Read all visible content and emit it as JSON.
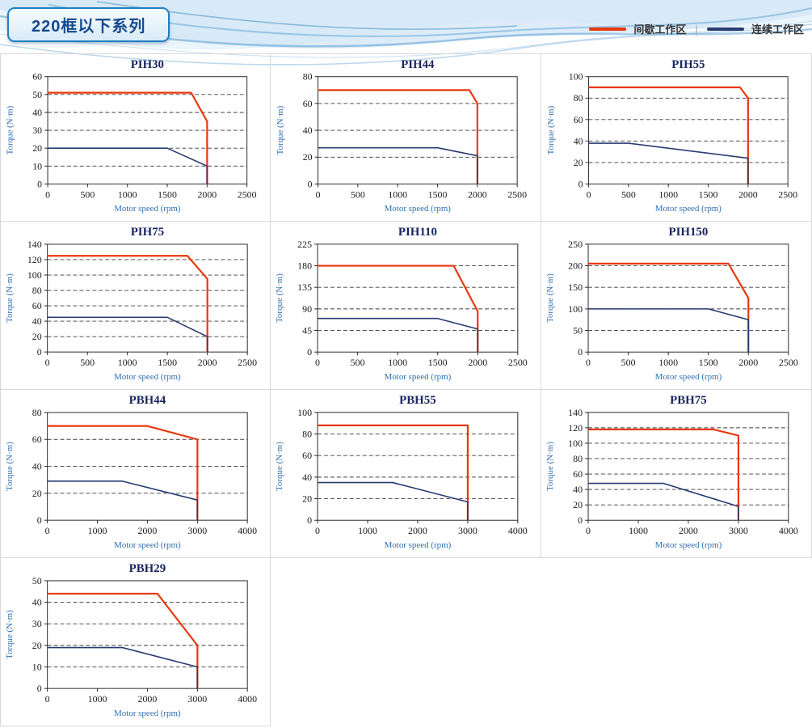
{
  "header": {
    "badge": "220框以下系列",
    "legend": {
      "items": [
        {
          "label": "间歇工作区",
          "color": "#e8380d"
        },
        {
          "label": "连续工作区",
          "color": "#283c72"
        }
      ],
      "divider": "|"
    }
  },
  "chart_data": [
    {
      "type": "line",
      "title": "PIH30",
      "xlabel": "Motor speed (rpm)",
      "ylabel": "Torque (N·m)",
      "xlim": [
        0,
        2500
      ],
      "ylim": [
        0,
        60
      ],
      "xticks": [
        0,
        500,
        1000,
        1500,
        2000,
        2500
      ],
      "yticks": [
        0,
        10,
        20,
        30,
        40,
        50,
        60
      ],
      "grid": "dashed-horizontal",
      "series": [
        {
          "name": "间歇工作区",
          "color": "#e8380d",
          "points": [
            [
              0,
              51
            ],
            [
              1800,
              51
            ],
            [
              2000,
              35
            ],
            [
              2000,
              0
            ]
          ]
        },
        {
          "name": "连续工作区",
          "color": "#283c72",
          "points": [
            [
              0,
              20
            ],
            [
              1500,
              20
            ],
            [
              2000,
              10
            ],
            [
              2000,
              0
            ]
          ]
        }
      ]
    },
    {
      "type": "line",
      "title": "PIH44",
      "xlabel": "Motor speed (rpm)",
      "ylabel": "Torque (N·m)",
      "xlim": [
        0,
        2500
      ],
      "ylim": [
        0,
        80
      ],
      "xticks": [
        0,
        500,
        1000,
        1500,
        2000,
        2500
      ],
      "yticks": [
        0,
        20,
        40,
        60,
        80
      ],
      "grid": "dashed-horizontal",
      "series": [
        {
          "name": "间歇工作区",
          "color": "#e8380d",
          "points": [
            [
              0,
              70
            ],
            [
              1900,
              70
            ],
            [
              2000,
              60
            ],
            [
              2000,
              0
            ]
          ]
        },
        {
          "name": "连续工作区",
          "color": "#283c72",
          "points": [
            [
              0,
              27
            ],
            [
              1500,
              27
            ],
            [
              2000,
              21
            ],
            [
              2000,
              0
            ]
          ]
        }
      ]
    },
    {
      "type": "line",
      "title": "PIH55",
      "xlabel": "Motor speed (rpm)",
      "ylabel": "Torque (N·m)",
      "xlim": [
        0,
        2500
      ],
      "ylim": [
        0,
        100
      ],
      "xticks": [
        0,
        500,
        1000,
        1500,
        2000,
        2500
      ],
      "yticks": [
        0,
        20,
        40,
        60,
        80,
        100
      ],
      "grid": "dashed-horizontal",
      "series": [
        {
          "name": "间歇工作区",
          "color": "#e8380d",
          "points": [
            [
              0,
              90
            ],
            [
              1900,
              90
            ],
            [
              2000,
              80
            ],
            [
              2000,
              0
            ]
          ]
        },
        {
          "name": "连续工作区",
          "color": "#283c72",
          "points": [
            [
              0,
              38
            ],
            [
              500,
              38
            ],
            [
              2000,
              24
            ],
            [
              2000,
              0
            ]
          ]
        }
      ]
    },
    {
      "type": "line",
      "title": "PIH75",
      "xlabel": "Motor speed (rpm)",
      "ylabel": "Torque (N·m)",
      "xlim": [
        0,
        2500
      ],
      "ylim": [
        0,
        140
      ],
      "xticks": [
        0,
        500,
        1000,
        1500,
        2000,
        2500
      ],
      "yticks": [
        0,
        20,
        40,
        60,
        80,
        100,
        120,
        140
      ],
      "grid": "dashed-horizontal",
      "series": [
        {
          "name": "间歇工作区",
          "color": "#e8380d",
          "points": [
            [
              0,
              125
            ],
            [
              1750,
              125
            ],
            [
              2000,
              95
            ],
            [
              2000,
              0
            ]
          ]
        },
        {
          "name": "连续工作区",
          "color": "#283c72",
          "points": [
            [
              0,
              45
            ],
            [
              1500,
              45
            ],
            [
              2000,
              20
            ],
            [
              2000,
              0
            ]
          ]
        }
      ]
    },
    {
      "type": "line",
      "title": "PIH110",
      "xlabel": "Motor speed (rpm)",
      "ylabel": "Torque (N·m)",
      "xlim": [
        0,
        2500
      ],
      "ylim": [
        0,
        225
      ],
      "xticks": [
        0,
        500,
        1000,
        1500,
        2000,
        2500
      ],
      "yticks": [
        0,
        45,
        90,
        135,
        180,
        225
      ],
      "grid": "dashed-horizontal",
      "series": [
        {
          "name": "间歇工作区",
          "color": "#e8380d",
          "points": [
            [
              0,
              180
            ],
            [
              1700,
              180
            ],
            [
              2000,
              85
            ],
            [
              2000,
              0
            ]
          ]
        },
        {
          "name": "连续工作区",
          "color": "#283c72",
          "points": [
            [
              0,
              70
            ],
            [
              1500,
              70
            ],
            [
              2000,
              48
            ],
            [
              2000,
              0
            ]
          ]
        }
      ]
    },
    {
      "type": "line",
      "title": "PIH150",
      "xlabel": "Motor speed (rpm)",
      "ylabel": "Torque (N·m)",
      "xlim": [
        0,
        2500
      ],
      "ylim": [
        0,
        250
      ],
      "xticks": [
        0,
        500,
        1000,
        1500,
        2000,
        2500
      ],
      "yticks": [
        0,
        50,
        100,
        150,
        200,
        250
      ],
      "grid": "dashed-horizontal",
      "series": [
        {
          "name": "间歇工作区",
          "color": "#e8380d",
          "points": [
            [
              0,
              205
            ],
            [
              1750,
              205
            ],
            [
              2000,
              125
            ],
            [
              2000,
              0
            ]
          ]
        },
        {
          "name": "连续工作区",
          "color": "#283c72",
          "points": [
            [
              0,
              100
            ],
            [
              1500,
              100
            ],
            [
              2000,
              75
            ],
            [
              2000,
              0
            ]
          ]
        }
      ]
    },
    {
      "type": "line",
      "title": "PBH44",
      "xlabel": "Motor speed (rpm)",
      "ylabel": "Torque (N·m)",
      "xlim": [
        0,
        4000
      ],
      "ylim": [
        0,
        80
      ],
      "xticks": [
        0,
        1000,
        2000,
        3000,
        4000
      ],
      "yticks": [
        0,
        20,
        40,
        60,
        80
      ],
      "grid": "dashed-horizontal",
      "series": [
        {
          "name": "间歇工作区",
          "color": "#e8380d",
          "points": [
            [
              0,
              70
            ],
            [
              2000,
              70
            ],
            [
              3000,
              60
            ],
            [
              3000,
              0
            ]
          ]
        },
        {
          "name": "连续工作区",
          "color": "#283c72",
          "points": [
            [
              0,
              29
            ],
            [
              1500,
              29
            ],
            [
              3000,
              15
            ],
            [
              3000,
              0
            ]
          ]
        }
      ]
    },
    {
      "type": "line",
      "title": "PBH55",
      "xlabel": "Motor speed (rpm)",
      "ylabel": "Torque (N·m)",
      "xlim": [
        0,
        4000
      ],
      "ylim": [
        0,
        100
      ],
      "xticks": [
        0,
        1000,
        2000,
        3000,
        4000
      ],
      "yticks": [
        0,
        20,
        40,
        60,
        80,
        100
      ],
      "grid": "dashed-horizontal",
      "series": [
        {
          "name": "间歇工作区",
          "color": "#e8380d",
          "points": [
            [
              0,
              88
            ],
            [
              3000,
              88
            ],
            [
              3000,
              0
            ]
          ]
        },
        {
          "name": "连续工作区",
          "color": "#283c72",
          "points": [
            [
              0,
              35
            ],
            [
              1500,
              35
            ],
            [
              3000,
              17
            ],
            [
              3000,
              0
            ]
          ]
        }
      ]
    },
    {
      "type": "line",
      "title": "PBH75",
      "xlabel": "Motor speed (rpm)",
      "ylabel": "Torque (N·m)",
      "xlim": [
        0,
        4000
      ],
      "ylim": [
        0,
        140
      ],
      "xticks": [
        0,
        1000,
        2000,
        3000,
        4000
      ],
      "yticks": [
        0,
        20,
        40,
        60,
        80,
        100,
        120,
        140
      ],
      "grid": "dashed-horizontal",
      "series": [
        {
          "name": "间歇工作区",
          "color": "#e8380d",
          "points": [
            [
              0,
              118
            ],
            [
              2500,
              118
            ],
            [
              3000,
              110
            ],
            [
              3000,
              0
            ]
          ]
        },
        {
          "name": "连续工作区",
          "color": "#283c72",
          "points": [
            [
              0,
              48
            ],
            [
              1500,
              48
            ],
            [
              3000,
              18
            ],
            [
              3000,
              0
            ]
          ]
        }
      ]
    },
    {
      "type": "line",
      "title": "PBH29",
      "xlabel": "Motor speed (rpm)",
      "ylabel": "Torque (N·m)",
      "xlim": [
        0,
        4000
      ],
      "ylim": [
        0,
        50
      ],
      "xticks": [
        0,
        1000,
        2000,
        3000,
        4000
      ],
      "yticks": [
        0,
        10,
        20,
        30,
        40,
        50
      ],
      "grid": "dashed-horizontal",
      "series": [
        {
          "name": "间歇工作区",
          "color": "#e8380d",
          "points": [
            [
              0,
              44
            ],
            [
              2200,
              44
            ],
            [
              3000,
              20
            ],
            [
              3000,
              0
            ]
          ]
        },
        {
          "name": "连续工作区",
          "color": "#283c72",
          "points": [
            [
              0,
              19
            ],
            [
              1500,
              19
            ],
            [
              3000,
              10
            ],
            [
              3000,
              0
            ]
          ]
        }
      ]
    }
  ]
}
